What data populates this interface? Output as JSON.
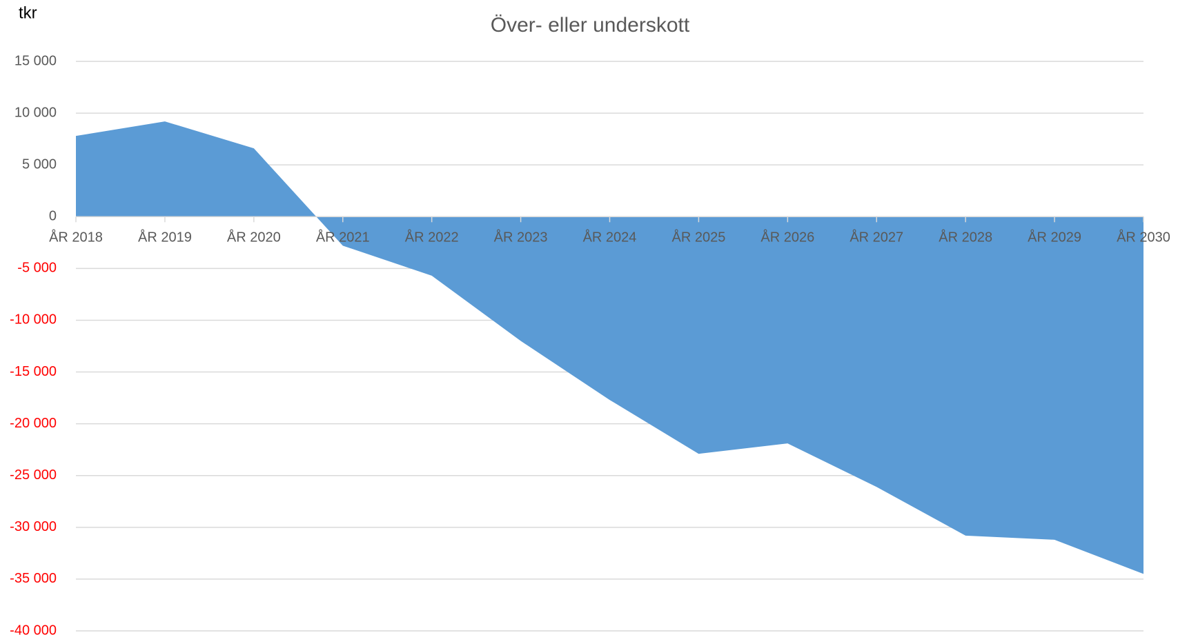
{
  "chart_data": {
    "type": "area",
    "title": "Över- eller underskott",
    "y_axis_label": "tkr",
    "categories": [
      "ÅR 2018",
      "ÅR 2019",
      "ÅR 2020",
      "ÅR 2021",
      "ÅR 2022",
      "ÅR 2023",
      "ÅR 2024",
      "ÅR 2025",
      "ÅR 2026",
      "ÅR 2027",
      "ÅR 2028",
      "ÅR 2029",
      "ÅR 2030"
    ],
    "values": [
      7800,
      9200,
      6600,
      -2800,
      -5700,
      -12000,
      -17700,
      -22900,
      -21900,
      -26100,
      -30800,
      -31200,
      -34500
    ],
    "color": "#5b9bd5",
    "ylim": [
      -40000,
      15000
    ],
    "yticks": [
      {
        "value": -40000,
        "label": "-40 000"
      },
      {
        "value": -35000,
        "label": "-35 000"
      },
      {
        "value": -30000,
        "label": "-30 000"
      },
      {
        "value": -25000,
        "label": "-25 000"
      },
      {
        "value": -20000,
        "label": "-20 000"
      },
      {
        "value": -15000,
        "label": "-15 000"
      },
      {
        "value": -10000,
        "label": "-10 000"
      },
      {
        "value": -5000,
        "label": "-5 000"
      },
      0,
      {
        "value": 5000,
        "label": "5 000"
      },
      {
        "value": 10000,
        "label": "10 000"
      },
      {
        "value": 15000,
        "label": "15 000"
      }
    ],
    "negative_tick_color": "#ff0000",
    "grid": true
  }
}
